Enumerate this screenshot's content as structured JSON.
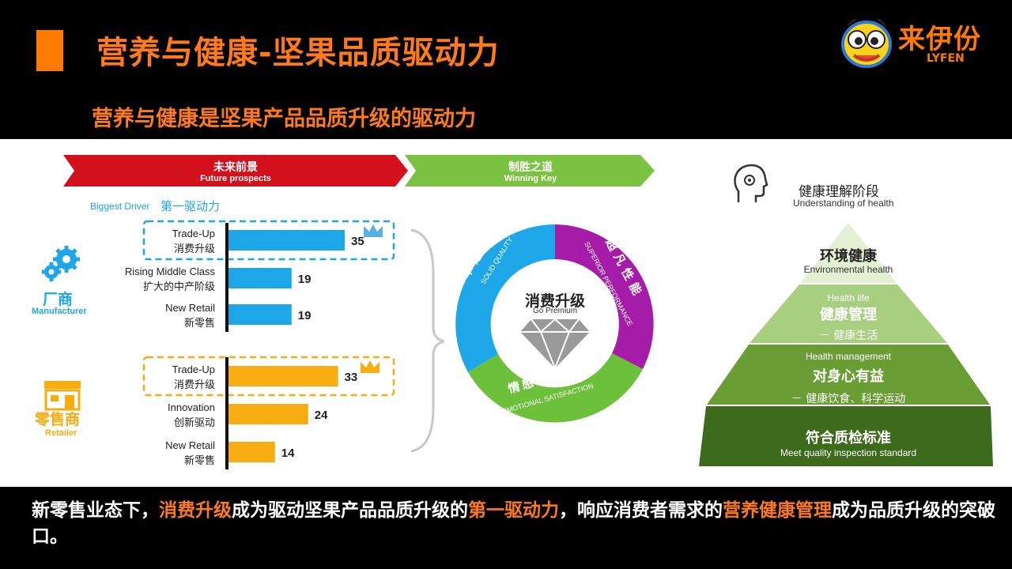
{
  "header": {
    "title": "营养与健康-坚果品质驱动力",
    "subtitle": "营养与健康是坚果产品品质升级的驱动力",
    "logo_name": "来伊份",
    "logo_sub": "LYFEN"
  },
  "banners": {
    "future_cn": "未来前景",
    "future_en": "Future prospects",
    "winning_cn": "制胜之道",
    "winning_en": "Winning Key"
  },
  "biggest_driver": {
    "en": "Biggest Driver",
    "cn": "第一驱动力"
  },
  "manufacturer": {
    "cn": "厂商",
    "en": "Manufacturer"
  },
  "retailer": {
    "cn": "零售商",
    "en": "Retailer"
  },
  "chart_data": [
    {
      "type": "bar",
      "orientation": "horizontal",
      "group": "厂商 Manufacturer",
      "categories": [
        {
          "en": "Trade-Up",
          "cn": "消费升级"
        },
        {
          "en": "Rising Middle Class",
          "cn": "扩大的中产阶级"
        },
        {
          "en": "New Retail",
          "cn": "新零售"
        }
      ],
      "values": [
        35,
        19,
        19
      ],
      "color": "#1ea7e8",
      "highlight_index": 0
    },
    {
      "type": "bar",
      "orientation": "horizontal",
      "group": "零售商 Retailer",
      "categories": [
        {
          "en": "Trade-Up",
          "cn": "消费升级"
        },
        {
          "en": "Innovation",
          "cn": "创新驱动"
        },
        {
          "en": "New Retail",
          "cn": "新零售"
        }
      ],
      "values": [
        33,
        24,
        14
      ],
      "color": "#f7ac12",
      "highlight_index": 0
    }
  ],
  "ring": {
    "center_cn": "消费升级",
    "center_en": "Go Premium",
    "segments": [
      {
        "cn": "卓越品质",
        "en": "SOLID QUALITY",
        "color": "#1ea7e8"
      },
      {
        "cn": "超凡性能",
        "en": "SUPERIOR PERFORMANCE",
        "color": "#a41ca8"
      },
      {
        "cn": "情感体验",
        "en": "EMOTIONAL SATISFACTION",
        "color": "#6cc03a"
      }
    ]
  },
  "pyramid": {
    "heading_cn": "健康理解阶段",
    "heading_en": "Understanding of health",
    "levels": [
      {
        "cn": "环境健康",
        "en": "Environmental health",
        "color": "#e4f0d2"
      },
      {
        "small": "Health life",
        "cn": "健康管理",
        "detail": "－ 健康生活",
        "color": "#a8cf80"
      },
      {
        "small": "Health management",
        "cn": "对身心有益",
        "detail": "－ 健康饮食、科学运动",
        "color": "#6a9e35"
      },
      {
        "cn": "符合质检标准",
        "en": "Meet quality inspection standard",
        "color": "#3d6b1c"
      }
    ]
  },
  "footer": {
    "p1": "新零售业态下，",
    "h1": "消费升级",
    "p2": "成为驱动坚果产品品质升级的",
    "h2": "第一驱动力",
    "p3": "，响应消费者需求的",
    "h3": "营养健康管理",
    "p4": "成为品质升级的突破口。"
  }
}
